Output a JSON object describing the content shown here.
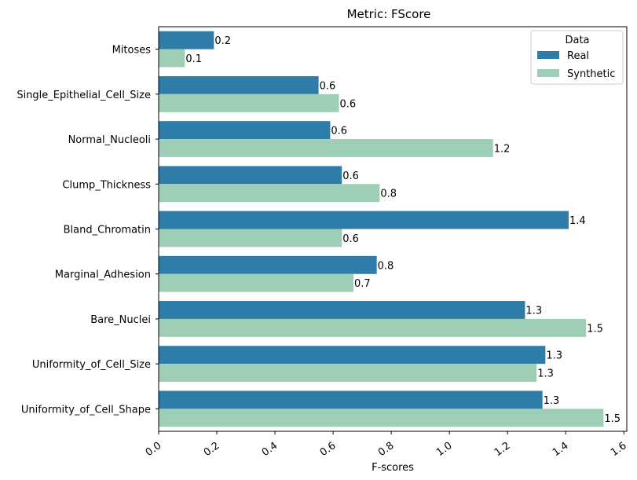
{
  "chart_data": {
    "type": "bar",
    "orientation": "horizontal",
    "title": "Metric: FScore",
    "xlabel": "F-scores",
    "ylabel": "",
    "xlim": [
      0.0,
      1.61
    ],
    "x_ticks": [
      "0.0",
      "0.2",
      "0.4",
      "0.6",
      "0.8",
      "1.0",
      "1.2",
      "1.4",
      "1.6"
    ],
    "categories": [
      "Mitoses",
      "Single_Epithelial_Cell_Size",
      "Normal_Nucleoli",
      "Clump_Thickness",
      "Bland_Chromatin",
      "Marginal_Adhesion",
      "Bare_Nuclei",
      "Uniformity_of_Cell_Size",
      "Uniformity_of_Cell_Shape"
    ],
    "series": [
      {
        "name": "Real",
        "color": "#2e7ca8",
        "values": [
          0.19,
          0.55,
          0.59,
          0.63,
          1.41,
          0.75,
          1.26,
          1.33,
          1.32
        ],
        "labels": [
          "0.2",
          "0.6",
          "0.6",
          "0.6",
          "1.4",
          "0.8",
          "1.3",
          "1.3",
          "1.3"
        ]
      },
      {
        "name": "Synthetic",
        "color": "#9ecfb6",
        "values": [
          0.09,
          0.62,
          1.15,
          0.76,
          0.63,
          0.67,
          1.47,
          1.3,
          1.53
        ],
        "labels": [
          "0.1",
          "0.6",
          "1.2",
          "0.8",
          "0.6",
          "0.7",
          "1.5",
          "1.3",
          "1.5"
        ]
      }
    ],
    "legend": {
      "title": "Data",
      "position": "top-right"
    },
    "grid": false
  }
}
